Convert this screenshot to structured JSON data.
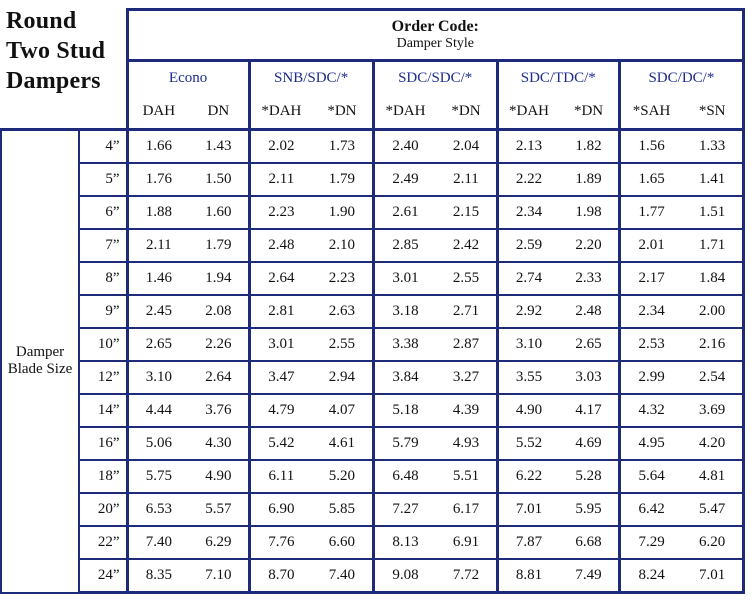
{
  "title": [
    "Round",
    "Two Stud",
    "Dampers"
  ],
  "order_code": {
    "title": "Order Code:",
    "subtitle": "Damper Style"
  },
  "row_label": [
    "Damper",
    "Blade Size"
  ],
  "groups": [
    {
      "name": "Econo",
      "cols": [
        "DAH",
        "DN"
      ]
    },
    {
      "name": "SNB/SDC/*",
      "cols": [
        "*DAH",
        "*DN"
      ]
    },
    {
      "name": "SDC/SDC/*",
      "cols": [
        "*DAH",
        "*DN"
      ]
    },
    {
      "name": "SDC/TDC/*",
      "cols": [
        "*DAH",
        "*DN"
      ]
    },
    {
      "name": "SDC/DC/*",
      "cols": [
        "*SAH",
        "*SN"
      ]
    }
  ],
  "rows": [
    {
      "size": "4”",
      "values": [
        "1.66",
        "1.43",
        "2.02",
        "1.73",
        "2.40",
        "2.04",
        "2.13",
        "1.82",
        "1.56",
        "1.33"
      ]
    },
    {
      "size": "5”",
      "values": [
        "1.76",
        "1.50",
        "2.11",
        "1.79",
        "2.49",
        "2.11",
        "2.22",
        "1.89",
        "1.65",
        "1.41"
      ]
    },
    {
      "size": "6”",
      "values": [
        "1.88",
        "1.60",
        "2.23",
        "1.90",
        "2.61",
        "2.15",
        "2.34",
        "1.98",
        "1.77",
        "1.51"
      ]
    },
    {
      "size": "7”",
      "values": [
        "2.11",
        "1.79",
        "2.48",
        "2.10",
        "2.85",
        "2.42",
        "2.59",
        "2.20",
        "2.01",
        "1.71"
      ]
    },
    {
      "size": "8”",
      "values": [
        "1.46",
        "1.94",
        "2.64",
        "2.23",
        "3.01",
        "2.55",
        "2.74",
        "2.33",
        "2.17",
        "1.84"
      ]
    },
    {
      "size": "9”",
      "values": [
        "2.45",
        "2.08",
        "2.81",
        "2.63",
        "3.18",
        "2.71",
        "2.92",
        "2.48",
        "2.34",
        "2.00"
      ]
    },
    {
      "size": "10”",
      "values": [
        "2.65",
        "2.26",
        "3.01",
        "2.55",
        "3.38",
        "2.87",
        "3.10",
        "2.65",
        "2.53",
        "2.16"
      ]
    },
    {
      "size": "12”",
      "values": [
        "3.10",
        "2.64",
        "3.47",
        "2.94",
        "3.84",
        "3.27",
        "3.55",
        "3.03",
        "2.99",
        "2.54"
      ]
    },
    {
      "size": "14”",
      "values": [
        "4.44",
        "3.76",
        "4.79",
        "4.07",
        "5.18",
        "4.39",
        "4.90",
        "4.17",
        "4.32",
        "3.69"
      ]
    },
    {
      "size": "16”",
      "values": [
        "5.06",
        "4.30",
        "5.42",
        "4.61",
        "5.79",
        "4.93",
        "5.52",
        "4.69",
        "4.95",
        "4.20"
      ]
    },
    {
      "size": "18”",
      "values": [
        "5.75",
        "4.90",
        "6.11",
        "5.20",
        "6.48",
        "5.51",
        "6.22",
        "5.28",
        "5.64",
        "4.81"
      ]
    },
    {
      "size": "20”",
      "values": [
        "6.53",
        "5.57",
        "6.90",
        "5.85",
        "7.27",
        "6.17",
        "7.01",
        "5.95",
        "6.42",
        "5.47"
      ]
    },
    {
      "size": "22”",
      "values": [
        "7.40",
        "6.29",
        "7.76",
        "6.60",
        "8.13",
        "6.91",
        "7.87",
        "6.68",
        "7.29",
        "6.20"
      ]
    },
    {
      "size": "24”",
      "values": [
        "8.35",
        "7.10",
        "8.70",
        "7.40",
        "9.08",
        "7.72",
        "8.81",
        "7.49",
        "8.24",
        "7.01"
      ]
    }
  ],
  "colors": {
    "border": "#1e2a7a",
    "group_text": "#1d2b8c",
    "text": "#111111"
  }
}
